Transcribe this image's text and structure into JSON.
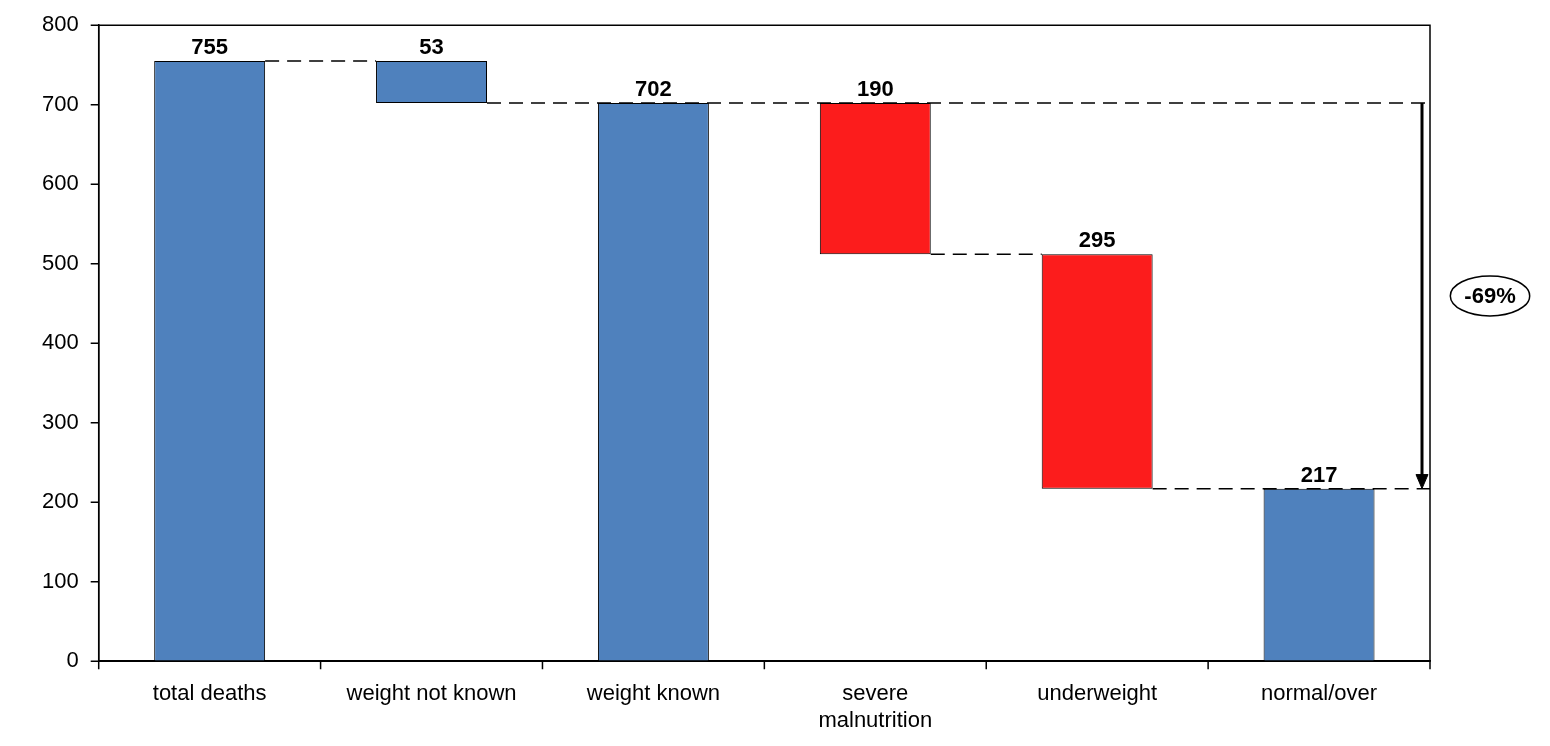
{
  "chart_data": {
    "type": "bar",
    "categories": [
      "total deaths",
      "weight not known",
      "weight known",
      "severe malnutrition",
      "underweight",
      "normal/over"
    ],
    "values": [
      755,
      53,
      702,
      190,
      295,
      217
    ],
    "base": [
      0,
      702,
      0,
      512,
      217,
      0
    ],
    "colors": [
      "#4f81bd",
      "#4f81bd",
      "#4f81bd",
      "#fc1c1c",
      "#fc1c1c",
      "#4f81bd"
    ],
    "ylim": [
      0,
      800
    ],
    "yticks": [
      0,
      100,
      200,
      300,
      400,
      500,
      600,
      700,
      800
    ],
    "grid": false,
    "legend": false,
    "data_labels": true,
    "ref_lines": [
      {
        "axis": "y",
        "value": 755,
        "line_style": "dashed"
      },
      {
        "axis": "y",
        "value": 702,
        "line_style": "dashed"
      },
      {
        "axis": "y",
        "value": 512,
        "line_style": "dashed"
      },
      {
        "axis": "y",
        "value": 217,
        "line_style": "dashed"
      }
    ],
    "annotations": [
      "-69%"
    ]
  }
}
